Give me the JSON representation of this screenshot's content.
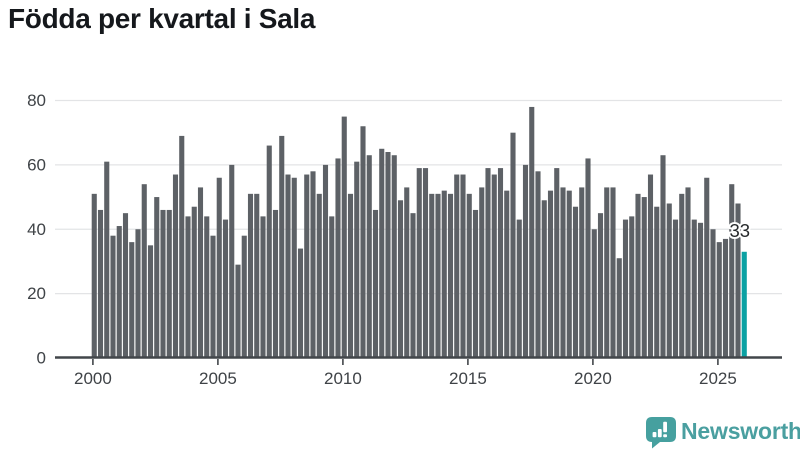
{
  "title": "Födda per kvartal i Sala",
  "colors": {
    "bar": "#5d6166",
    "highlight": "#0ba1a3",
    "grid": "#e3e4e6",
    "axis": "#42464a",
    "tick_text": "#3f4347",
    "label_text": "#26292b",
    "label_halo": "#ffffff",
    "brand_teal": "#46a09f"
  },
  "chart_data": {
    "type": "bar",
    "title": "Födda per kvartal i Sala",
    "xlabel": "",
    "ylabel": "",
    "x_start": "2000-Q1",
    "x_end": "2026-Q1",
    "x_unit": "quarter",
    "ylim": [
      0,
      80
    ],
    "grid": true,
    "y_tick_labels": [
      "0",
      "20",
      "40",
      "60",
      "80"
    ],
    "x_tick_labels": [
      "2000",
      "2005",
      "2010",
      "2015",
      "2020",
      "2025"
    ],
    "series": [
      {
        "name": "Födda per kvartal",
        "values": [
          51,
          46,
          61,
          38,
          41,
          45,
          36,
          40,
          54,
          35,
          50,
          46,
          46,
          57,
          69,
          44,
          47,
          53,
          44,
          38,
          56,
          43,
          60,
          29,
          38,
          51,
          51,
          44,
          66,
          46,
          69,
          57,
          56,
          34,
          57,
          58,
          51,
          60,
          44,
          62,
          75,
          51,
          61,
          72,
          63,
          46,
          65,
          64,
          63,
          49,
          53,
          45,
          59,
          59,
          51,
          51,
          52,
          51,
          57,
          57,
          51,
          46,
          53,
          59,
          57,
          59,
          52,
          70,
          43,
          60,
          78,
          58,
          49,
          52,
          59,
          53,
          52,
          47,
          53,
          62,
          40,
          45,
          53,
          53,
          31,
          43,
          44,
          51,
          50,
          57,
          47,
          63,
          48,
          43,
          51,
          53,
          43,
          42,
          56,
          40,
          36,
          37,
          54,
          48,
          33
        ]
      }
    ],
    "highlight": {
      "index": 104,
      "value": 33,
      "label": "33"
    },
    "legend": "none"
  },
  "footer": {
    "brand_name": "Newsworthy",
    "logo_icon": "bar-chart-speech-bubble-icon"
  }
}
